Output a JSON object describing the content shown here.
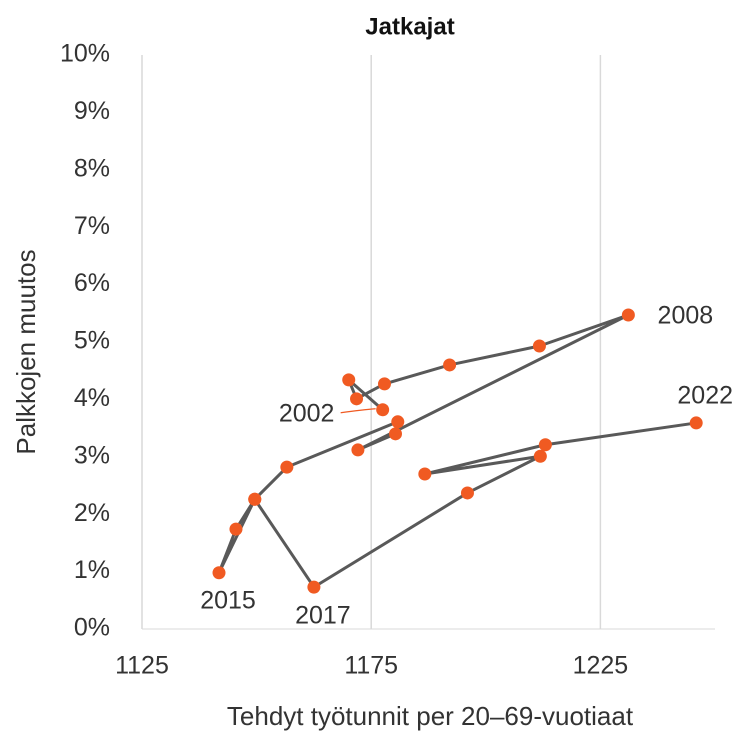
{
  "chart_data": {
    "type": "scatter",
    "title": "Jatkajat",
    "x_label": "Tehdyt työtunnit per 20–69-vuotiaat",
    "y_label": "Palkkojen muutos",
    "connected": true,
    "color": "#f05a22",
    "line_color": "#595959",
    "grid": true,
    "xlim": [
      1125,
      1250
    ],
    "xticks": [
      1125,
      1175,
      1225
    ],
    "ylim": [
      0,
      10
    ],
    "yticks": [
      {
        "value": 0,
        "label": "0%"
      },
      {
        "value": 1,
        "label": "1%"
      },
      {
        "value": 2,
        "label": "2%"
      },
      {
        "value": 3,
        "label": "3%"
      },
      {
        "value": 4,
        "label": "4%"
      },
      {
        "value": 5,
        "label": "5%"
      },
      {
        "value": 6,
        "label": "6%"
      },
      {
        "value": 7,
        "label": "7%"
      },
      {
        "value": 8,
        "label": "8%"
      },
      {
        "value": 9,
        "label": "9%"
      },
      {
        "value": 10,
        "label": "10%"
      }
    ],
    "x": [
      1177.5,
      1170.1,
      1171.8,
      1177.9,
      1192.1,
      1211.7,
      1231.1,
      1172.1,
      1180.3,
      1180.8,
      1156.6,
      1149.6,
      1145.5,
      1141.8,
      1149.6,
      1162.5,
      1196.0,
      1211.9,
      1186.7,
      1213.0,
      1245.9
    ],
    "values": [
      3.82,
      4.34,
      4.01,
      4.27,
      4.6,
      4.93,
      5.47,
      3.12,
      3.4,
      3.61,
      2.82,
      2.26,
      1.74,
      0.98,
      2.26,
      0.73,
      2.37,
      3.01,
      2.7,
      3.21,
      3.59
    ],
    "point_labels": [
      "2002",
      null,
      null,
      null,
      null,
      null,
      "2008",
      null,
      null,
      null,
      null,
      null,
      null,
      "2015",
      null,
      "2017",
      null,
      null,
      null,
      null,
      "2022"
    ]
  }
}
